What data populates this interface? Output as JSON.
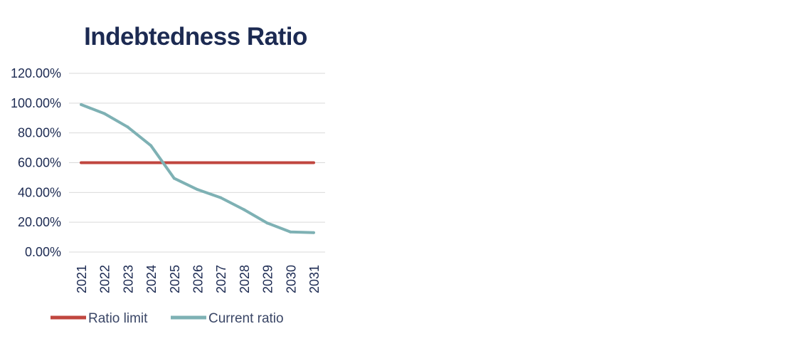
{
  "chart_data": {
    "type": "line",
    "title": "Indebtedness Ratio",
    "xlabel": "",
    "ylabel": "",
    "categories": [
      "2021",
      "2022",
      "2023",
      "2024",
      "2025",
      "2026",
      "2027",
      "2028",
      "2029",
      "2030",
      "2031"
    ],
    "y_ticks": [
      "0.00%",
      "20.00%",
      "40.00%",
      "60.00%",
      "80.00%",
      "100.00%",
      "120.00%"
    ],
    "ylim": [
      0,
      120
    ],
    "grid": true,
    "legend_position": "bottom",
    "series": [
      {
        "name": "Ratio limit",
        "color": "#c0463f",
        "values": [
          60,
          60,
          60,
          60,
          60,
          60,
          60,
          60,
          60,
          60,
          60
        ]
      },
      {
        "name": "Current ratio",
        "color": "#7eb1b4",
        "values": [
          99,
          93,
          84,
          71.5,
          49.5,
          42,
          36.5,
          28.5,
          19.5,
          13.5,
          13
        ]
      }
    ]
  }
}
